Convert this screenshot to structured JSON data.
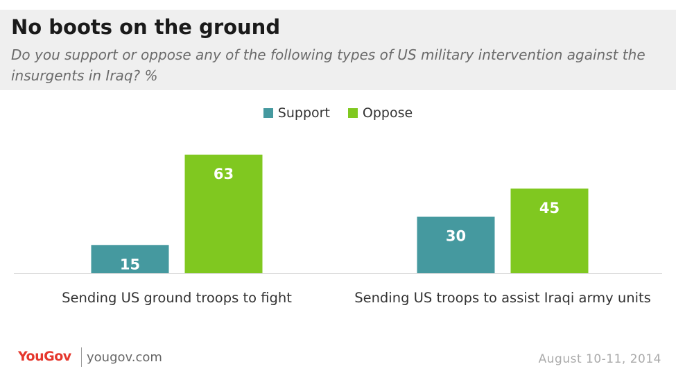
{
  "header": {
    "title": "No boots on the ground",
    "subtitle": "Do you support or oppose any of the following types of US military intervention against the insurgents in Iraq? %"
  },
  "legend": {
    "support_label": "Support",
    "oppose_label": "Oppose"
  },
  "footer": {
    "logo": "YouGov",
    "url": "yougov.com",
    "date": "August 10-11, 2014"
  },
  "colors": {
    "support": "#45999f",
    "oppose": "#80c820"
  },
  "chart_data": {
    "type": "bar",
    "title": "No boots on the ground",
    "subtitle": "Do you support or oppose any of the following types of US military intervention against the insurgents in Iraq? %",
    "categories": [
      "Sending US ground troops to fight",
      "Sending US troops to assist Iraqi army units"
    ],
    "series": [
      {
        "name": "Support",
        "values": [
          15,
          30
        ]
      },
      {
        "name": "Oppose",
        "values": [
          63,
          45
        ]
      }
    ],
    "ylim": [
      0,
      70
    ],
    "grid": false,
    "legend_position": "top-center",
    "data_labels": true
  }
}
